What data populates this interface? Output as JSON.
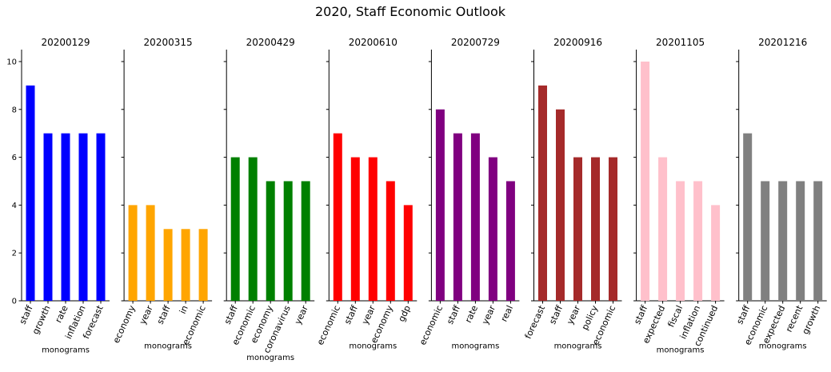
{
  "figure": {
    "title": "2020, Staff Economic Outlook"
  },
  "chart_data": [
    {
      "type": "bar",
      "title": "20200129",
      "xlabel": "monograms",
      "ylabel": "",
      "ylim": [
        0,
        10.5
      ],
      "yticks": [
        0,
        2,
        4,
        6,
        8,
        10
      ],
      "grid": false,
      "color": "#0000ff",
      "categories": [
        "staff",
        "growth",
        "rate",
        "inflation",
        "forecast"
      ],
      "values": [
        9,
        7,
        7,
        7,
        7
      ]
    },
    {
      "type": "bar",
      "title": "20200315",
      "xlabel": "monograms",
      "ylabel": "",
      "ylim": [
        0,
        10.5
      ],
      "yticks": [
        0,
        2,
        4,
        6,
        8,
        10
      ],
      "grid": false,
      "color": "#ffa500",
      "categories": [
        "economy",
        "year",
        "staff",
        "in",
        "economic"
      ],
      "values": [
        4,
        4,
        3,
        3,
        3
      ]
    },
    {
      "type": "bar",
      "title": "20200429",
      "xlabel": "monograms",
      "ylabel": "",
      "ylim": [
        0,
        10.5
      ],
      "yticks": [
        0,
        2,
        4,
        6,
        8,
        10
      ],
      "grid": false,
      "color": "#008000",
      "categories": [
        "staff",
        "economic",
        "economy",
        "coronavirus",
        "year"
      ],
      "values": [
        6,
        6,
        5,
        5,
        5
      ]
    },
    {
      "type": "bar",
      "title": "20200610",
      "xlabel": "monograms",
      "ylabel": "",
      "ylim": [
        0,
        10.5
      ],
      "yticks": [
        0,
        2,
        4,
        6,
        8,
        10
      ],
      "grid": false,
      "color": "#ff0000",
      "categories": [
        "economic",
        "staff",
        "year",
        "economy",
        "gdp"
      ],
      "values": [
        7,
        6,
        6,
        5,
        4
      ]
    },
    {
      "type": "bar",
      "title": "20200729",
      "xlabel": "monograms",
      "ylabel": "",
      "ylim": [
        0,
        10.5
      ],
      "yticks": [
        0,
        2,
        4,
        6,
        8,
        10
      ],
      "grid": false,
      "color": "#800080",
      "categories": [
        "economic",
        "staff",
        "rate",
        "year",
        "real"
      ],
      "values": [
        8,
        7,
        7,
        6,
        5
      ]
    },
    {
      "type": "bar",
      "title": "20200916",
      "xlabel": "monograms",
      "ylabel": "",
      "ylim": [
        0,
        10.5
      ],
      "yticks": [
        0,
        2,
        4,
        6,
        8,
        10
      ],
      "grid": false,
      "color": "#a52a2a",
      "categories": [
        "forecast",
        "staff",
        "year",
        "policy",
        "economic"
      ],
      "values": [
        9,
        8,
        6,
        6,
        6
      ]
    },
    {
      "type": "bar",
      "title": "20201105",
      "xlabel": "monograms",
      "ylabel": "",
      "ylim": [
        0,
        10.5
      ],
      "yticks": [
        0,
        2,
        4,
        6,
        8,
        10
      ],
      "grid": false,
      "color": "#ffc0cb",
      "categories": [
        "staff",
        "expected",
        "fiscal",
        "inflation",
        "continued"
      ],
      "values": [
        10,
        6,
        5,
        5,
        4
      ]
    },
    {
      "type": "bar",
      "title": "20201216",
      "xlabel": "monograms",
      "ylabel": "",
      "ylim": [
        0,
        10.5
      ],
      "yticks": [
        0,
        2,
        4,
        6,
        8,
        10
      ],
      "grid": false,
      "color": "#808080",
      "categories": [
        "staff",
        "economic",
        "expected",
        "recent",
        "growth"
      ],
      "values": [
        7,
        5,
        5,
        5,
        5
      ]
    }
  ]
}
